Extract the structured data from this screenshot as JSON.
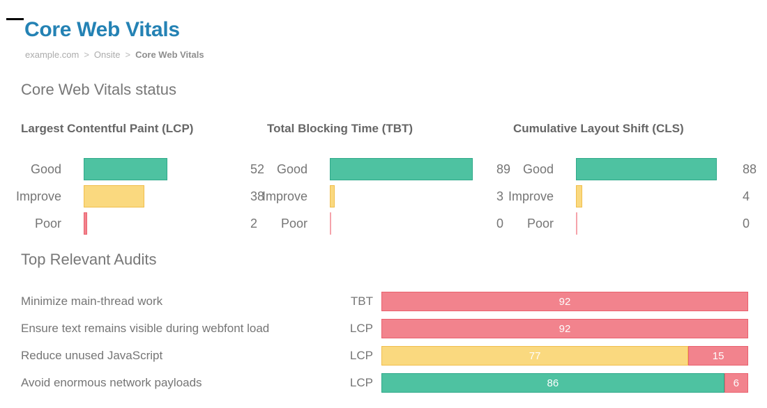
{
  "page": {
    "title": "Core Web Vitals",
    "breadcrumb": {
      "items": [
        "example.com",
        "Onsite",
        "Core Web Vitals"
      ],
      "separator": ">"
    }
  },
  "status": {
    "heading": "Core Web Vitals status",
    "charts": [
      {
        "title": "Largest Contentful Paint (LCP)",
        "rows": [
          {
            "label": "Good",
            "value": 52,
            "status": "good"
          },
          {
            "label": "Improve",
            "value": 38,
            "status": "improve"
          },
          {
            "label": "Poor",
            "value": 2,
            "status": "poor"
          }
        ]
      },
      {
        "title": "Total Blocking Time (TBT)",
        "rows": [
          {
            "label": "Good",
            "value": 89,
            "status": "good"
          },
          {
            "label": "Improve",
            "value": 3,
            "status": "improve"
          },
          {
            "label": "Poor",
            "value": 0,
            "status": "poor"
          }
        ]
      },
      {
        "title": "Cumulative Layout Shift (CLS)",
        "rows": [
          {
            "label": "Good",
            "value": 88,
            "status": "good"
          },
          {
            "label": "Improve",
            "value": 4,
            "status": "improve"
          },
          {
            "label": "Poor",
            "value": 0,
            "status": "poor"
          }
        ]
      }
    ]
  },
  "audits": {
    "heading": "Top Relevant Audits",
    "rows": [
      {
        "label": "Minimize main-thread work",
        "metric": "TBT",
        "segments": [
          {
            "status": "poor",
            "value": 92
          }
        ]
      },
      {
        "label": "Ensure text remains visible during webfont load",
        "metric": "LCP",
        "segments": [
          {
            "status": "poor",
            "value": 92
          }
        ]
      },
      {
        "label": "Reduce unused JavaScript",
        "metric": "LCP",
        "segments": [
          {
            "status": "improve",
            "value": 77
          },
          {
            "status": "poor",
            "value": 15
          }
        ]
      },
      {
        "label": "Avoid enormous network payloads",
        "metric": "LCP",
        "segments": [
          {
            "status": "good",
            "value": 86
          },
          {
            "status": "poor",
            "value": 6
          }
        ]
      }
    ]
  },
  "colors": {
    "title_blue": "#2482B4",
    "good_fill": "#4EC2A1",
    "good_border": "#2FA98A",
    "improve_fill": "#FAD97F",
    "improve_border": "#F0BE4C",
    "poor_fill": "#F2838D",
    "poor_border": "#E9606D",
    "label_gray": "#757575",
    "heading_gray": "#777777",
    "breadcrumb_gray": "#ABABAB"
  },
  "chart_data": [
    {
      "type": "bar",
      "orientation": "horizontal",
      "title": "Largest Contentful Paint (LCP)",
      "categories": [
        "Good",
        "Improve",
        "Poor"
      ],
      "values": [
        52,
        38,
        2
      ],
      "xlim": [
        0,
        100
      ],
      "grid": false,
      "value_labels": "end-of-bar",
      "category_colors": [
        "green",
        "yellow",
        "red"
      ]
    },
    {
      "type": "bar",
      "orientation": "horizontal",
      "title": "Total Blocking Time (TBT)",
      "categories": [
        "Good",
        "Improve",
        "Poor"
      ],
      "values": [
        89,
        3,
        0
      ],
      "xlim": [
        0,
        100
      ],
      "grid": false,
      "value_labels": "end-of-bar",
      "category_colors": [
        "green",
        "yellow",
        "red"
      ]
    },
    {
      "type": "bar",
      "orientation": "horizontal",
      "title": "Cumulative Layout Shift (CLS)",
      "categories": [
        "Good",
        "Improve",
        "Poor"
      ],
      "values": [
        88,
        4,
        0
      ],
      "xlim": [
        0,
        100
      ],
      "grid": false,
      "value_labels": "end-of-bar",
      "category_colors": [
        "green",
        "yellow",
        "red"
      ]
    },
    {
      "type": "bar",
      "orientation": "horizontal",
      "stacked": true,
      "title": "Top Relevant Audits",
      "categories": [
        "Minimize main-thread work",
        "Ensure text remains visible during webfont load",
        "Reduce unused JavaScript",
        "Avoid enormous network payloads"
      ],
      "metric_tags": [
        "TBT",
        "LCP",
        "LCP",
        "LCP"
      ],
      "series": [
        {
          "name": "poor-red",
          "values": [
            92,
            92,
            15,
            6
          ]
        },
        {
          "name": "improve-yellow",
          "values": [
            0,
            0,
            77,
            0
          ]
        },
        {
          "name": "good-green",
          "values": [
            0,
            0,
            0,
            86
          ]
        }
      ],
      "value_labels": "centered-in-segment",
      "grid": false
    }
  ]
}
